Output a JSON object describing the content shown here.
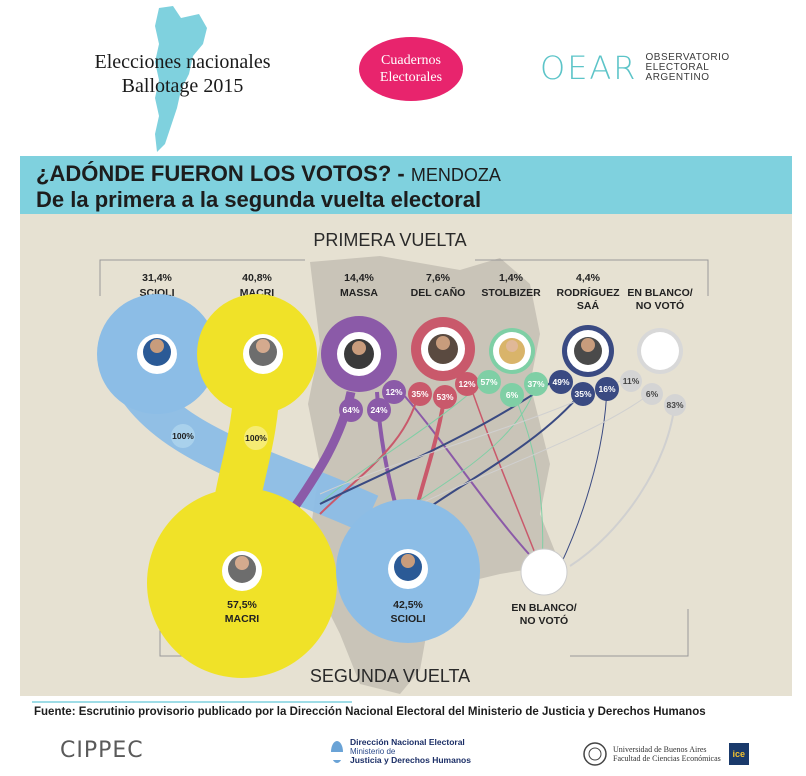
{
  "header": {
    "title_line1": "Elecciones nacionales",
    "title_line2": "Ballotage 2015",
    "badge_line1": "Cuadernos",
    "badge_line2": "Electorales",
    "oear_logo": "OEAR",
    "oear_line1": "OBSERVATORIO",
    "oear_line2": "ELECTORAL",
    "oear_line3": "ARGENTINO"
  },
  "banner": {
    "question": "¿ADÓNDE FUERON LOS VOTOS? -",
    "province": "MENDOZA",
    "subtitle": "De la primera a la segunda vuelta electoral"
  },
  "diagram": {
    "first_round_label": "PRIMERA VUELTA",
    "second_round_label": "SEGUNDA VUELTA",
    "first_round": [
      {
        "pct": "31,4%",
        "name1": "SCIOLI",
        "name2": "",
        "color": "#8cbde6"
      },
      {
        "pct": "40,8%",
        "name1": "MACRI",
        "name2": "",
        "color": "#f0e228"
      },
      {
        "pct": "14,4%",
        "name1": "MASSA",
        "name2": "",
        "color": "#8b5aa8"
      },
      {
        "pct": "7,6%",
        "name1": "DEL CAÑO",
        "name2": "",
        "color": "#c9596b"
      },
      {
        "pct": "1,4%",
        "name1": "STOLBIZER",
        "name2": "",
        "color": "#7fcfa5"
      },
      {
        "pct": "4,4%",
        "name1": "RODRÍGUEZ",
        "name2": "SAÁ",
        "color": "#3a4a82"
      },
      {
        "pct": "",
        "name1": "EN BLANCO/",
        "name2": "NO VOTÓ",
        "color": "#d8d8d8"
      }
    ],
    "second_round": [
      {
        "pct": "57,5%",
        "name": "MACRI",
        "color": "#f0e228"
      },
      {
        "pct": "42,5%",
        "name": "SCIOLI",
        "color": "#8cbde6"
      },
      {
        "pct": "",
        "name1": "EN BLANCO/",
        "name2": "NO VOTÓ",
        "color": "#ffffff"
      }
    ],
    "transfers": {
      "scioli": [
        "100%"
      ],
      "macri": [
        "100%"
      ],
      "massa": [
        "64%",
        "24%",
        "12%"
      ],
      "del_cano": [
        "35%",
        "53%",
        "12%"
      ],
      "stolbizer": [
        "57%",
        "6%",
        "37%"
      ],
      "rodriguez_saa": [
        "49%",
        "35%",
        "16%"
      ],
      "blank": [
        "11%",
        "6%",
        "83%"
      ]
    }
  },
  "source": "Fuente: Escrutinio provisorio publicado por la Dirección Nacional Electoral del Ministerio de Justicia y Derechos Humanos",
  "footer": {
    "cippec": "CIPPEC",
    "dne_line1": "Dirección Nacional Electoral",
    "dne_line2": "Ministerio de",
    "dne_line3": "Justicia y Derechos Humanos",
    "uba_line1": "Universidad de Buenos Aires",
    "uba_line2": "Facultad de Ciencias Económicas",
    "ice": "ice"
  }
}
